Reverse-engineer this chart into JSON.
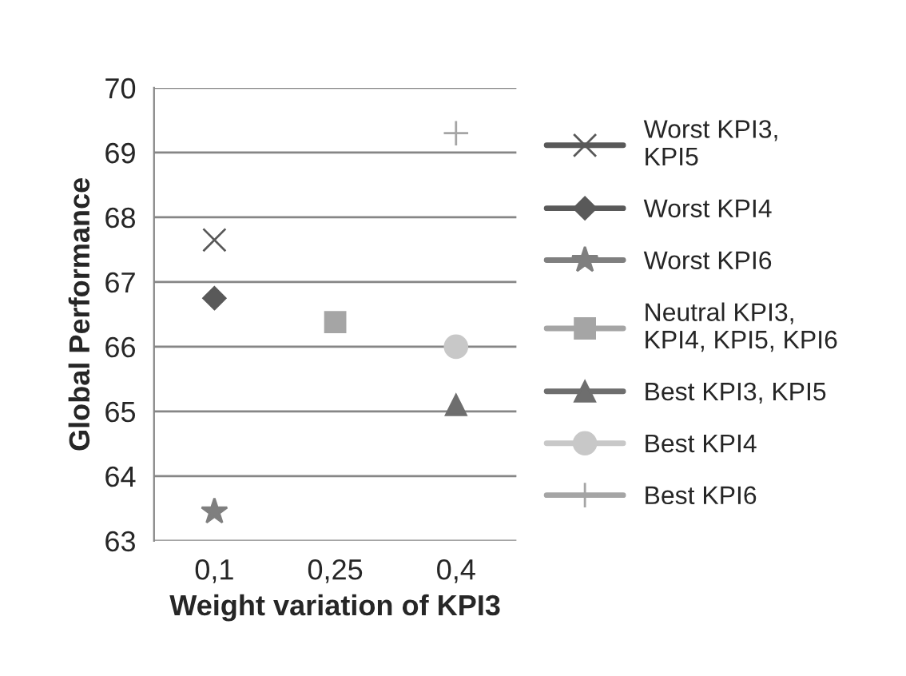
{
  "chart_data": {
    "type": "line",
    "xlabel": "Weight variation of KPI3",
    "ylabel": "Global Performance",
    "categories": [
      "0,1",
      "0,25",
      "0,4"
    ],
    "series": [
      {
        "name": "Worst KPI3,\nKPI5",
        "color": "#595959",
        "marker": "cross",
        "values": [
          67.65,
          null,
          null
        ]
      },
      {
        "name": "Worst KPI4",
        "color": "#595959",
        "marker": "diamond",
        "values": [
          66.75,
          null,
          null
        ]
      },
      {
        "name": "Worst KPI6",
        "color": "#7f7f7f",
        "marker": "star",
        "values": [
          63.45,
          null,
          null
        ]
      },
      {
        "name": "Neutral KPI3,\nKPI4, KPI5, KPI6",
        "color": "#a5a5a5",
        "marker": "square",
        "values": [
          null,
          66.38,
          null
        ]
      },
      {
        "name": "Best KPI3, KPI5",
        "color": "#6e6e6e",
        "marker": "triangle",
        "values": [
          null,
          null,
          65.1
        ]
      },
      {
        "name": "Best KPI4",
        "color": "#c8c8c8",
        "marker": "circle",
        "values": [
          null,
          null,
          66.0
        ]
      },
      {
        "name": "Best KPI6",
        "color": "#a5a5a5",
        "marker": "plus",
        "values": [
          null,
          null,
          69.3
        ]
      }
    ],
    "ylim": [
      63,
      70
    ],
    "yticks": [
      63,
      64,
      65,
      66,
      67,
      68,
      69,
      70
    ],
    "grid": "y",
    "legend": "right"
  }
}
